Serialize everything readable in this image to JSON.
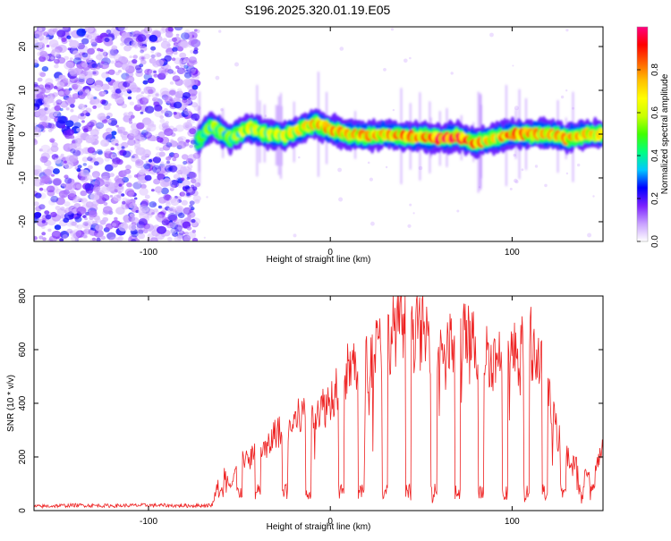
{
  "title": "S196.2025.320.01.19.E05",
  "chart_data": [
    {
      "type": "heatmap",
      "xlabel": "Height of straight line (km)",
      "ylabel": "Frequency (Hz)",
      "xlim": [
        -163,
        150
      ],
      "ylim": [
        -24.5,
        24.5
      ],
      "x_ticks": [
        -100,
        0,
        100
      ],
      "y_ticks": [
        -20,
        -10,
        0,
        10,
        20
      ],
      "colorbar": {
        "label": "Normalized spectral amplitude",
        "range": [
          0,
          1
        ],
        "ticks": [
          "0.0",
          "0.2",
          "0.4",
          "0.6",
          "0.8"
        ],
        "colors": [
          "#ffffff",
          "#c8a0ff",
          "#7a20ff",
          "#0000ff",
          "#00c8ff",
          "#00ff80",
          "#40ff00",
          "#c8ff00",
          "#ffff00",
          "#ffc000",
          "#ff6000",
          "#ff0000",
          "#ff0080"
        ]
      },
      "noise_region_x": [
        -163,
        -73
      ],
      "ridge": {
        "x": [
          -73,
          -65,
          -55,
          -45,
          -35,
          -25,
          -15,
          -8,
          0,
          10,
          20,
          30,
          40,
          50,
          60,
          70,
          80,
          90,
          100,
          110,
          120,
          130,
          140,
          150
        ],
        "frequency": [
          -1.5,
          2,
          -1,
          1.5,
          0,
          -0.5,
          1.5,
          2.5,
          1,
          0,
          -0.5,
          0,
          -0.5,
          -0.5,
          -1,
          -0.5,
          -2,
          -1,
          0,
          0,
          0,
          -1,
          0,
          0
        ],
        "amplitude": [
          0.5,
          0.6,
          0.55,
          0.7,
          0.65,
          0.7,
          0.75,
          0.8,
          0.85,
          0.8,
          0.85,
          0.8,
          0.9,
          0.85,
          1.0,
          1.0,
          0.9,
          0.75,
          0.95,
          0.85,
          0.8,
          0.85,
          0.8,
          0.75
        ]
      }
    },
    {
      "type": "line",
      "xlabel": "Height of straight line (km)",
      "ylabel": "SNR (10 * v/v)",
      "xlim": [
        -163,
        150
      ],
      "ylim": [
        0,
        800
      ],
      "x_ticks": [
        -100,
        0,
        100
      ],
      "y_ticks": [
        0,
        200,
        400,
        600,
        800
      ],
      "color": "#ee2222",
      "series": [
        {
          "name": "SNR",
          "x": [
            -163,
            -140,
            -120,
            -100,
            -80,
            -65,
            -60,
            -55,
            -50,
            -45,
            -40,
            -35,
            -30,
            -25,
            -20,
            -15,
            -10,
            -5,
            0,
            5,
            10,
            15,
            20,
            25,
            30,
            35,
            40,
            45,
            50,
            55,
            60,
            65,
            70,
            75,
            80,
            85,
            90,
            95,
            100,
            105,
            110,
            115,
            120,
            125,
            130,
            135,
            140,
            145,
            150
          ],
          "y": [
            15,
            20,
            18,
            20,
            18,
            20,
            150,
            100,
            200,
            180,
            250,
            220,
            300,
            280,
            330,
            360,
            390,
            380,
            410,
            500,
            520,
            560,
            540,
            600,
            610,
            680,
            720,
            700,
            660,
            650,
            630,
            600,
            640,
            640,
            620,
            600,
            560,
            600,
            580,
            600,
            630,
            560,
            420,
            280,
            200,
            170,
            160,
            140,
            230
          ]
        }
      ],
      "dips_x": [
        -60,
        -50,
        -40,
        -25,
        -12,
        6,
        17,
        30,
        43,
        57,
        70,
        83,
        96,
        108,
        118,
        128,
        138,
        144
      ]
    }
  ]
}
